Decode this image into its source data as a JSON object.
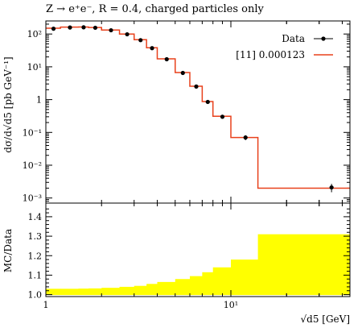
{
  "colors": {
    "data_marker": "#000000",
    "mc_line": "#e8411c",
    "ratio_band": "#ffff00",
    "frame": "#000000"
  },
  "chart_data": [
    {
      "panel": "main",
      "type": "line",
      "title": "Z → e⁺e⁻, R = 0.4, charged particles only",
      "xlabel": "",
      "ylabel": "dσ/d√d5 [pb GeV⁻¹]",
      "xscale": "log",
      "yscale": "log",
      "xlim": [
        1,
        44
      ],
      "ylim": [
        0.0007,
        250
      ],
      "x_ticks": [
        1,
        10
      ],
      "x_tick_labels": [
        "1",
        "10¹"
      ],
      "y_ticks": [
        0.001,
        0.01,
        0.1,
        1,
        10,
        100
      ],
      "y_tick_labels": [
        "10⁻³",
        "10⁻²",
        "10⁻¹",
        "1",
        "10¹",
        "10²"
      ],
      "legend_position": "top-right",
      "series": [
        {
          "name": "Data",
          "style": "points-with-errors",
          "x": [
            1.1,
            1.35,
            1.6,
            1.85,
            2.25,
            2.75,
            3.25,
            3.75,
            4.5,
            5.5,
            6.5,
            7.5,
            9.0,
            12.0,
            35.0
          ],
          "y": [
            145,
            158,
            160,
            155,
            130,
            98,
            65,
            37,
            17,
            6.5,
            2.5,
            0.85,
            0.3,
            0.07,
            0.0021
          ],
          "yerr_low": [
            0,
            0,
            0,
            0,
            0,
            0,
            0,
            0,
            0,
            0,
            0,
            0,
            0,
            0.012,
            0.0006
          ],
          "yerr_high": [
            0,
            0,
            0,
            0,
            0,
            0,
            0,
            0,
            0,
            0,
            0,
            0,
            0,
            0.012,
            0.0006
          ]
        },
        {
          "name": "[11] 0.000123",
          "style": "step",
          "bin_edges": [
            1.0,
            1.2,
            1.5,
            1.7,
            2.0,
            2.5,
            3.0,
            3.5,
            4.0,
            5.0,
            6.0,
            7.0,
            8.0,
            10.0,
            14.0,
            44.0
          ],
          "values": [
            150,
            162,
            163,
            158,
            132,
            100,
            67,
            38,
            17.5,
            6.7,
            2.55,
            0.87,
            0.31,
            0.07,
            0.002
          ]
        }
      ]
    },
    {
      "panel": "ratio",
      "type": "area",
      "xlabel": "√d5 [GeV]",
      "ylabel": "MC/Data",
      "xscale": "log",
      "xlim": [
        1,
        44
      ],
      "ylim": [
        0.99,
        1.47
      ],
      "y_ticks": [
        1.0,
        1.1,
        1.2,
        1.3,
        1.4
      ],
      "y_tick_labels": [
        "1.0",
        "1.1",
        "1.2",
        "1.3",
        "1.4"
      ],
      "x_ticks": [
        1,
        10
      ],
      "x_tick_labels": [
        "1",
        "10¹"
      ],
      "band": {
        "bin_edges": [
          1.0,
          1.2,
          1.5,
          1.7,
          2.0,
          2.5,
          3.0,
          3.5,
          4.0,
          5.0,
          6.0,
          7.0,
          8.0,
          10.0,
          14.0,
          44.0
        ],
        "upper": [
          1.03,
          1.03,
          1.031,
          1.032,
          1.035,
          1.04,
          1.045,
          1.055,
          1.065,
          1.08,
          1.095,
          1.115,
          1.14,
          1.18,
          1.31
        ],
        "lower": [
          1.0,
          1.0,
          1.0,
          1.0,
          1.0,
          1.0,
          1.0,
          1.0,
          1.0,
          1.0,
          1.0,
          1.0,
          1.0,
          1.0,
          1.0
        ]
      }
    }
  ]
}
